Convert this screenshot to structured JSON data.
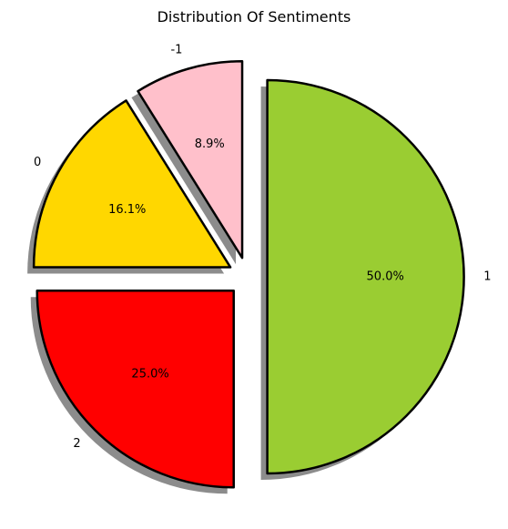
{
  "chart_data": {
    "type": "pie",
    "title": "Distribution Of Sentiments",
    "slices": [
      {
        "label": "-1",
        "value": 8.9,
        "pct_text": "8.9%",
        "color": "#ffc0cb"
      },
      {
        "label": "0",
        "value": 16.1,
        "pct_text": "16.1%",
        "color": "#ffd700"
      },
      {
        "label": "2",
        "value": 25.0,
        "pct_text": "25.0%",
        "color": "#ff0000"
      },
      {
        "label": "1",
        "value": 50.0,
        "pct_text": "50.0%",
        "color": "#9acd32"
      }
    ],
    "exploded": true,
    "shadow": true,
    "edge_color": "#000000"
  }
}
